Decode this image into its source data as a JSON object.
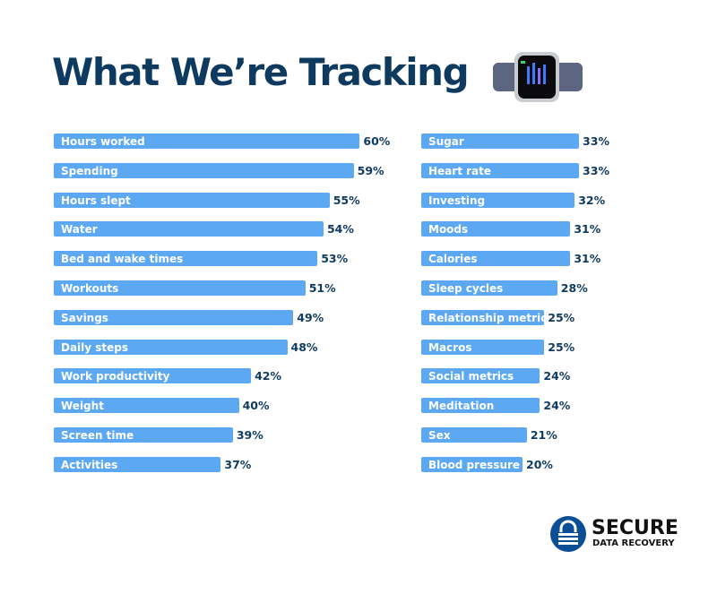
{
  "chart_data": {
    "type": "bar",
    "orientation": "horizontal",
    "title": "What We’re Tracking",
    "bar_color": "#5ca8f3",
    "text_color": "#0f3a5f",
    "columns": [
      {
        "categories": [
          "Hours worked",
          "Spending",
          "Hours slept",
          "Water",
          "Bed and wake times",
          "Workouts",
          "Savings",
          "Daily steps",
          "Work productivity",
          "Weight",
          "Screen time",
          "Activities"
        ],
        "values": [
          60,
          59,
          55,
          54,
          53,
          51,
          49,
          48,
          42,
          40,
          39,
          37
        ]
      },
      {
        "categories": [
          "Sugar",
          "Heart rate",
          "Investing",
          "Moods",
          "Calories",
          "Sleep cycles",
          "Relationship metrics",
          "Macros",
          "Social metrics",
          "Meditation",
          "Sex",
          "Blood pressure"
        ],
        "values": [
          33,
          33,
          32,
          31,
          31,
          28,
          25,
          25,
          24,
          24,
          21,
          20
        ]
      }
    ],
    "value_suffix": "%"
  },
  "logo": {
    "line1": "SECURE",
    "line2": "DATA RECOVERY",
    "color": "#0a4f96"
  }
}
